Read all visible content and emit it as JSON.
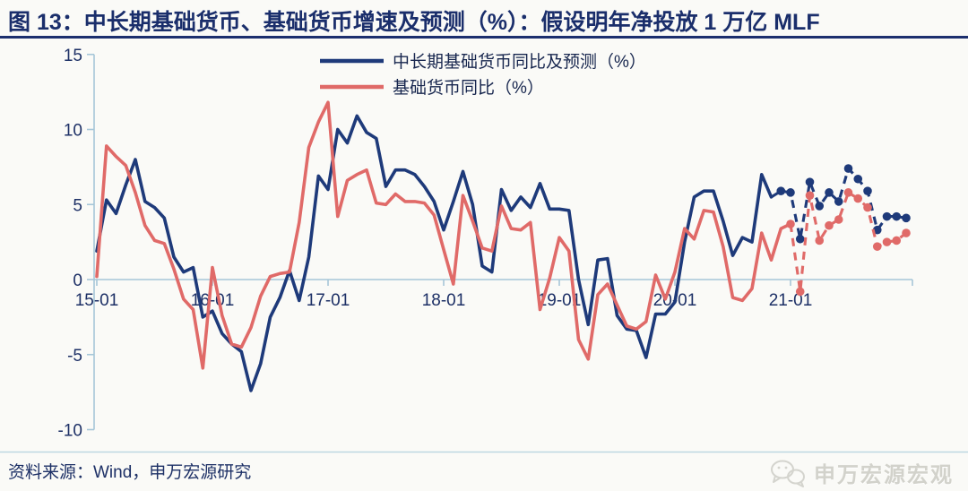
{
  "header": {
    "title": "图 13：中长期基础货币、基础货币增速及预测（%）：假设明年净投放 1 万亿 MLF"
  },
  "footer": {
    "source_note": "资料来源：Wind，申万宏源研究",
    "watermark": "申万宏源宏观",
    "watermark_icon": "wechat-bubbles-icon"
  },
  "colors": {
    "title_navy": "#1a2e6b",
    "rule_navy": "#1c2f6e",
    "axis_line": "#a6c6d8",
    "axis_text": "#1d3066",
    "background": "#fafaf7",
    "watermark_gray": "#d2d2cb"
  },
  "chart_data": {
    "type": "line",
    "title": "中长期基础货币、基础货币增速及预测（%）",
    "x_monthly_start": "2015-01",
    "x_monthly_end": "2022-01",
    "x_tick_labels": [
      "15-01",
      "16-01",
      "17-01",
      "18-01",
      "19-01",
      "20-01",
      "21-01"
    ],
    "y_ticks": [
      15,
      10,
      5,
      0,
      -5,
      -10
    ],
    "ylim": [
      -10,
      15
    ],
    "grid": false,
    "legend_position": "top-center",
    "forecast_note": "dashed segments with dot markers are forecast values",
    "series": [
      {
        "name": "中长期基础货币同比及预测（%）",
        "color": "#1e3a7a",
        "solid_until_index": 70,
        "marker_from_index": 71,
        "values": [
          1.9,
          5.3,
          4.4,
          6.3,
          8.0,
          5.2,
          4.8,
          4.1,
          1.5,
          0.5,
          0.8,
          -2.5,
          -2.1,
          -3.6,
          -4.3,
          -4.8,
          -7.4,
          -5.6,
          -2.5,
          -1.2,
          0.6,
          -1.4,
          1.5,
          6.9,
          6.0,
          10.0,
          9.1,
          10.9,
          9.8,
          9.4,
          6.2,
          7.3,
          7.3,
          7.0,
          6.2,
          5.2,
          3.3,
          5.2,
          7.2,
          5.0,
          0.9,
          0.5,
          6.0,
          4.6,
          5.5,
          4.8,
          6.4,
          4.7,
          4.7,
          4.6,
          0.0,
          -3.0,
          1.3,
          1.4,
          -2.4,
          -3.3,
          -3.4,
          -5.2,
          -2.3,
          -2.3,
          -1.5,
          2.5,
          5.5,
          5.9,
          5.9,
          3.9,
          1.6,
          2.8,
          2.5,
          7.0,
          5.5,
          5.9,
          5.8,
          2.7,
          6.5,
          4.9,
          5.8,
          5.2,
          7.4,
          6.7,
          5.9,
          3.3,
          4.2,
          4.2,
          4.1
        ]
      },
      {
        "name": "基础货币同比（%）",
        "color": "#e06a68",
        "solid_until_index": 72,
        "marker_from_index": 72,
        "values": [
          0.2,
          8.9,
          8.2,
          7.6,
          5.8,
          3.6,
          2.6,
          2.4,
          0.7,
          -1.3,
          -2.0,
          -5.9,
          0.8,
          -2.4,
          -4.3,
          -4.5,
          -3.2,
          -1.1,
          0.2,
          0.4,
          0.5,
          3.8,
          8.8,
          10.5,
          11.8,
          4.2,
          6.6,
          7.0,
          7.3,
          5.1,
          5.0,
          5.7,
          5.2,
          5.2,
          5.1,
          4.3,
          2.0,
          -0.3,
          5.6,
          3.9,
          2.1,
          1.9,
          4.9,
          3.4,
          3.3,
          3.8,
          -2.0,
          0.1,
          2.8,
          1.9,
          -4.0,
          -5.3,
          -1.0,
          -0.3,
          -1.7,
          -3.1,
          -3.3,
          -2.8,
          0.3,
          -1.3,
          0.5,
          3.4,
          2.7,
          4.6,
          4.5,
          2.2,
          -1.2,
          -1.4,
          -0.6,
          3.1,
          1.3,
          3.4,
          3.7,
          -0.8,
          5.6,
          2.6,
          3.6,
          4.0,
          5.8,
          5.4,
          4.8,
          2.2,
          2.5,
          2.6,
          3.1
        ]
      }
    ]
  }
}
